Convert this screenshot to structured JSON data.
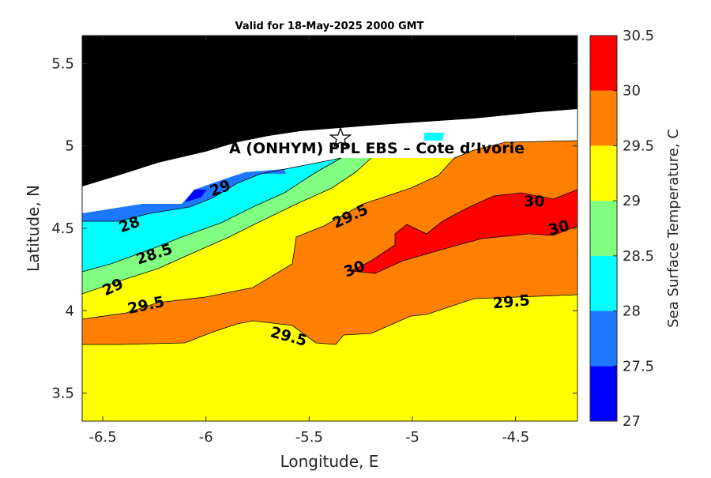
{
  "title": "Valid for 18-May-2025 2000 GMT",
  "annotation": "A (ONHYM) PPL EBS  – Cote d’Ivorie",
  "site_marker_icon": "star-icon",
  "chart_data": {
    "type": "heatmap",
    "subtype": "filled-contour-map",
    "xlabel": "Longitude, E",
    "ylabel": "Latitude, N",
    "xlim": [
      -6.6,
      -4.2
    ],
    "ylim": [
      3.33,
      5.67
    ],
    "xticks": [
      -6.5,
      -6,
      -5.5,
      -5,
      -4.5
    ],
    "xtick_labels": [
      "-6.5",
      "-6",
      "-5.5",
      "-5",
      "-4.5"
    ],
    "yticks": [
      3.5,
      4,
      4.5,
      5,
      5.5
    ],
    "ytick_labels": [
      "3.5",
      "4",
      "4.5",
      "5",
      "5.5"
    ],
    "colorbar": {
      "label": "Sea Surface Temperature, C",
      "levels": [
        27,
        27.5,
        28,
        28.5,
        29,
        29.5,
        30,
        30.5
      ],
      "tick_labels": [
        "27",
        "27.5",
        "28",
        "28.5",
        "29",
        "29.5",
        "30",
        "30.5"
      ],
      "colors": [
        "#0000ff",
        "#1e78ff",
        "#00ffff",
        "#80ff80",
        "#ffff00",
        "#ff8000",
        "#ff0000"
      ]
    },
    "land_color": "#000000",
    "no_data_color": "#ffffff",
    "site": {
      "lon": -5.34,
      "lat": 5.05
    },
    "contour_labels": [
      {
        "text": "28",
        "lon": -6.37,
        "lat": 4.52,
        "angle": -20
      },
      {
        "text": "28.5",
        "lon": -6.25,
        "lat": 4.34,
        "angle": -18
      },
      {
        "text": "29",
        "lon": -6.45,
        "lat": 4.14,
        "angle": -25
      },
      {
        "text": "29",
        "lon": -5.93,
        "lat": 4.74,
        "angle": -20
      },
      {
        "text": "29.5",
        "lon": -6.29,
        "lat": 4.03,
        "angle": -12
      },
      {
        "text": "29.5",
        "lon": -5.3,
        "lat": 4.57,
        "angle": -25
      },
      {
        "text": "29.5",
        "lon": -5.6,
        "lat": 3.84,
        "angle": 15
      },
      {
        "text": "29.5",
        "lon": -4.52,
        "lat": 4.05,
        "angle": -5
      },
      {
        "text": "30",
        "lon": -5.28,
        "lat": 4.25,
        "angle": -20
      },
      {
        "text": "30",
        "lon": -4.41,
        "lat": 4.66,
        "angle": 0
      },
      {
        "text": "30",
        "lon": -4.29,
        "lat": 4.5,
        "angle": -15
      }
    ]
  }
}
